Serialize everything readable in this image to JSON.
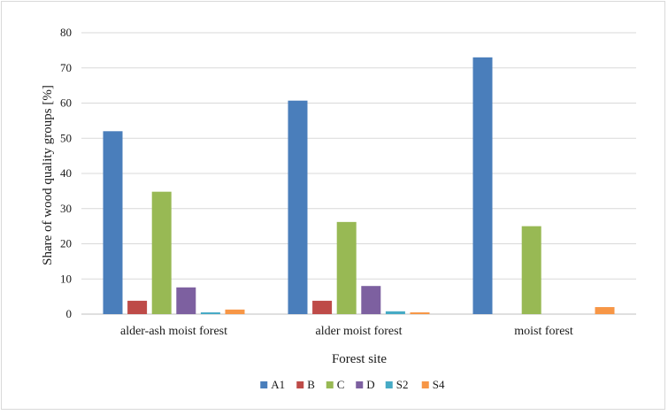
{
  "chart_data": {
    "type": "bar",
    "title": "",
    "xlabel": "Forest site",
    "ylabel": "Share of wood quality groups [%]",
    "ylim": [
      0,
      80
    ],
    "yticks": [
      0,
      10,
      20,
      30,
      40,
      50,
      60,
      70,
      80
    ],
    "grid": true,
    "legend_position": "bottom",
    "categories": [
      "alder-ash moist forest",
      "alder moist forest",
      "moist forest"
    ],
    "series": [
      {
        "name": "A1",
        "color": "#4a7ebb",
        "values": [
          52.0,
          60.7,
          73.0
        ]
      },
      {
        "name": "B",
        "color": "#be4b48",
        "values": [
          3.8,
          3.8,
          0
        ]
      },
      {
        "name": "C",
        "color": "#98b954",
        "values": [
          34.8,
          26.2,
          25.0
        ]
      },
      {
        "name": "D",
        "color": "#7d60a0",
        "values": [
          7.6,
          8.0,
          0
        ]
      },
      {
        "name": "S2",
        "color": "#46aac5",
        "values": [
          0.5,
          0.8,
          0
        ]
      },
      {
        "name": "S4",
        "color": "#f79646",
        "values": [
          1.3,
          0.5,
          2.0
        ]
      }
    ]
  }
}
